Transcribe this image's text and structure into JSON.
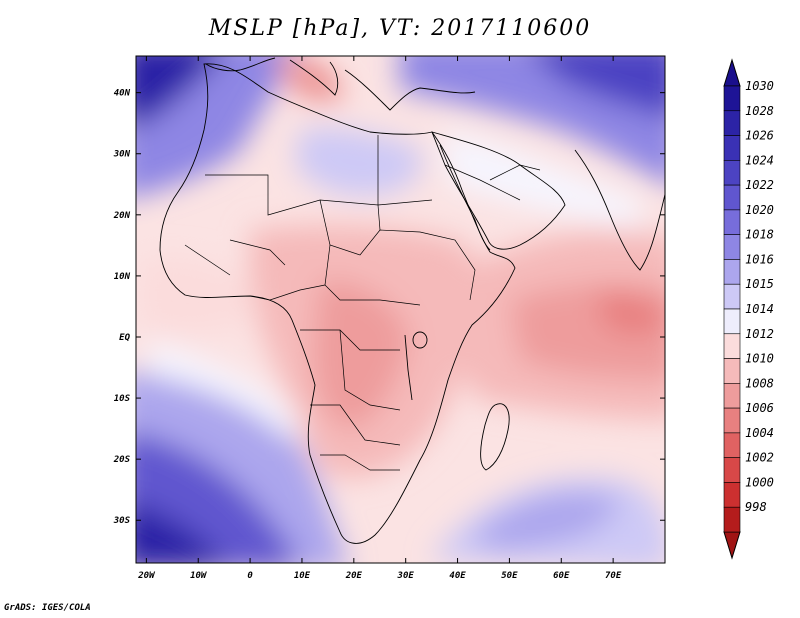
{
  "title": "MSLP [hPa], VT: 2017110600",
  "credit": "GrADS: IGES/COLA",
  "map": {
    "lon_range": [
      -22,
      80
    ],
    "lat_range": [
      -37,
      46
    ],
    "x_ticks": [
      {
        "lon": -20,
        "label": "20W"
      },
      {
        "lon": -10,
        "label": "10W"
      },
      {
        "lon": 0,
        "label": "0"
      },
      {
        "lon": 10,
        "label": "10E"
      },
      {
        "lon": 20,
        "label": "20E"
      },
      {
        "lon": 30,
        "label": "30E"
      },
      {
        "lon": 40,
        "label": "40E"
      },
      {
        "lon": 50,
        "label": "50E"
      },
      {
        "lon": 60,
        "label": "60E"
      },
      {
        "lon": 70,
        "label": "70E"
      }
    ],
    "y_ticks": [
      {
        "lat": 40,
        "label": "40N"
      },
      {
        "lat": 30,
        "label": "30N"
      },
      {
        "lat": 20,
        "label": "20N"
      },
      {
        "lat": 10,
        "label": "10N"
      },
      {
        "lat": 0,
        "label": "EQ"
      },
      {
        "lat": -10,
        "label": "10S"
      },
      {
        "lat": -20,
        "label": "20S"
      },
      {
        "lat": -30,
        "label": "30S"
      }
    ]
  },
  "colorbar": {
    "levels": [
      "1030",
      "1028",
      "1026",
      "1024",
      "1022",
      "1020",
      "1018",
      "1016",
      "1015",
      "1014",
      "1012",
      "1010",
      "1008",
      "1006",
      "1004",
      "1002",
      "1000",
      "998"
    ],
    "colors": [
      "#1e1496",
      "#2c23a6",
      "#3a31b5",
      "#4c43c2",
      "#6056cf",
      "#776ddb",
      "#8e86e4",
      "#aca6ed",
      "#cdc9f6",
      "#eeedfc",
      "#fbdcdc",
      "#f5baba",
      "#ee9c9c",
      "#e88080",
      "#e06262",
      "#d84848",
      "#cc3030",
      "#b41c1c"
    ],
    "top_arrow_color": "#1a0f8c",
    "bottom_arrow_color": "#a01414"
  }
}
